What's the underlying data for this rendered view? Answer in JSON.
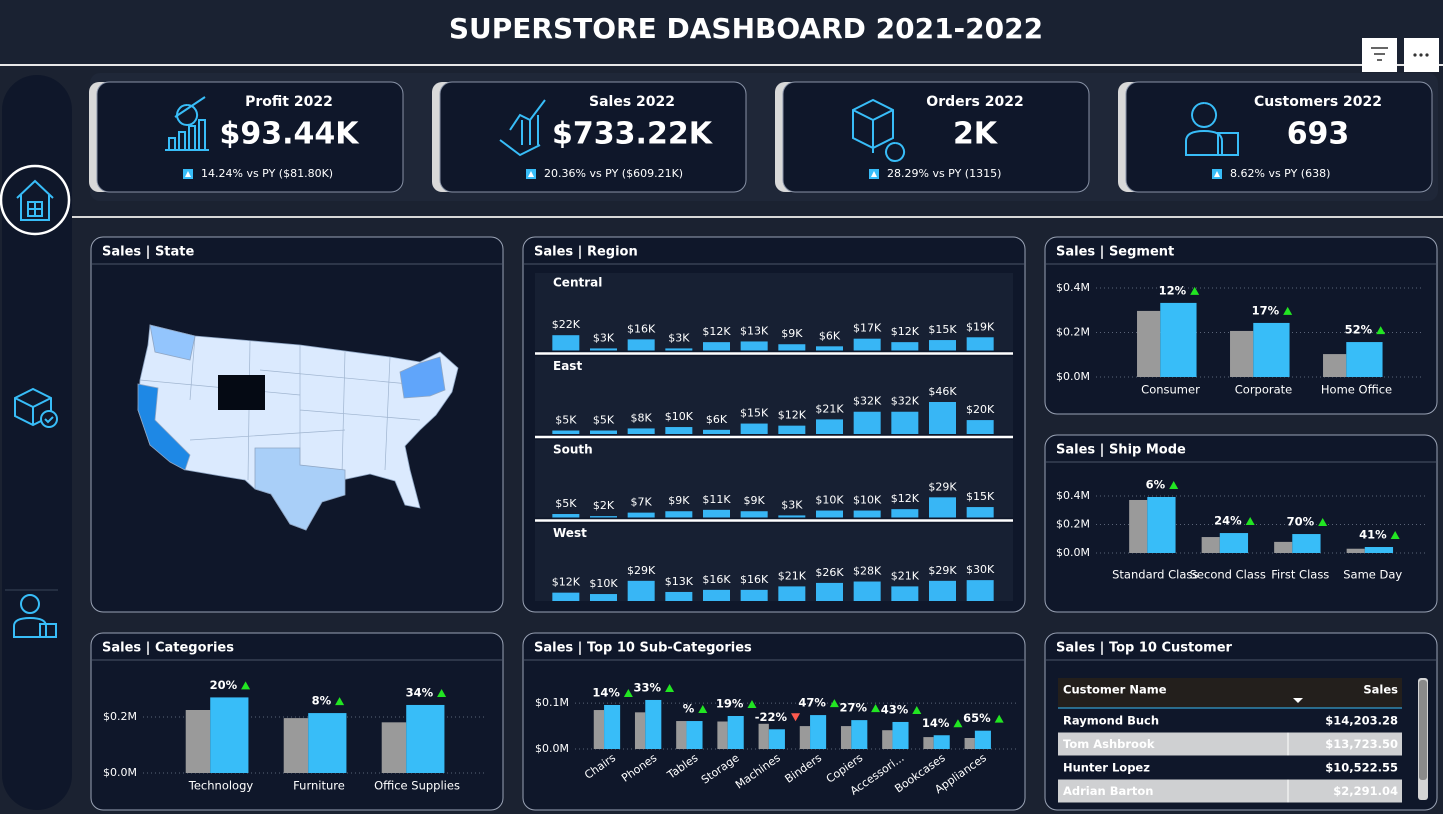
{
  "header": {
    "title": "SUPERSTORE DASHBOARD 2021-2022"
  },
  "kpis": [
    {
      "label": "Profit 2022",
      "value": "$93.44K",
      "comparison": "14.24% vs PY ($81.80K)"
    },
    {
      "label": "Sales 2022",
      "value": "$733.22K",
      "comparison": "20.36% vs PY ($609.21K)"
    },
    {
      "label": "Orders 2022",
      "value": "2K",
      "comparison": "28.29% vs PY (1315)"
    },
    {
      "label": "Customers 2022",
      "value": "693",
      "comparison": "8.62% vs PY (638)"
    }
  ],
  "chart_data": [
    {
      "type": "map",
      "title": "Sales | State"
    },
    {
      "type": "bar",
      "title": "Sales | Region",
      "layout": "small-multiples",
      "series": [
        {
          "name": "Central",
          "color": "#38b6f5",
          "values": [
            22,
            3,
            16,
            3,
            12,
            13,
            9,
            6,
            17,
            12,
            15,
            19
          ],
          "value_labels": [
            "$22K",
            "$3K",
            "$16K",
            "$3K",
            "$12K",
            "$13K",
            "$9K",
            "$6K",
            "$17K",
            "$12K",
            "$15K",
            "$19K"
          ]
        },
        {
          "name": "East",
          "color": "#38b6f5",
          "values": [
            5,
            5,
            8,
            10,
            6,
            15,
            12,
            21,
            32,
            32,
            46,
            20
          ],
          "value_labels": [
            "$5K",
            "$5K",
            "$8K",
            "$10K",
            "$6K",
            "$15K",
            "$12K",
            "$21K",
            "$32K",
            "$32K",
            "$46K",
            "$20K"
          ]
        },
        {
          "name": "South",
          "color": "#38b6f5",
          "values": [
            5,
            2,
            7,
            9,
            11,
            9,
            3,
            10,
            10,
            12,
            29,
            15
          ],
          "value_labels": [
            "$5K",
            "$2K",
            "$7K",
            "$9K",
            "$11K",
            "$9K",
            "$3K",
            "$10K",
            "$10K",
            "$12K",
            "$29K",
            "$15K"
          ]
        },
        {
          "name": "West",
          "color": "#38b6f5",
          "values": [
            12,
            10,
            29,
            13,
            16,
            16,
            21,
            26,
            28,
            21,
            29,
            30
          ],
          "value_labels": [
            "$12K",
            "$10K",
            "$29K",
            "$13K",
            "$16K",
            "$16K",
            "$21K",
            "$26K",
            "$28K",
            "$21K",
            "$29K",
            "$30K"
          ]
        }
      ]
    },
    {
      "type": "bar",
      "title": "Sales | Segment",
      "categories": [
        "Consumer",
        "Corporate",
        "Home Office"
      ],
      "series": [
        {
          "color": "#9a9a9a",
          "values": [
            0.297,
            0.207,
            0.103
          ]
        },
        {
          "color": "#38bdf8",
          "values": [
            0.333,
            0.243,
            0.157
          ]
        }
      ],
      "growth_labels": [
        "12%",
        "17%",
        "52%"
      ],
      "growth_direction": [
        "up",
        "up",
        "up"
      ],
      "ylim": [
        0,
        0.4
      ],
      "yticks": [
        {
          "value": 0,
          "label": "$0.0M"
        },
        {
          "value": 0.2,
          "label": "$0.2M"
        },
        {
          "value": 0.4,
          "label": "$0.4M"
        }
      ],
      "grid": true
    },
    {
      "type": "bar",
      "title": "Sales | Ship Mode",
      "categories": [
        "Standard Class",
        "Second Class",
        "First Class",
        "Same Day"
      ],
      "series": [
        {
          "color": "#9a9a9a",
          "values": [
            0.372,
            0.112,
            0.078,
            0.03
          ]
        },
        {
          "color": "#38bdf8",
          "values": [
            0.393,
            0.14,
            0.133,
            0.042
          ]
        }
      ],
      "growth_labels": [
        "6%",
        "24%",
        "70%",
        "41%"
      ],
      "growth_direction": [
        "up",
        "up",
        "up",
        "up"
      ],
      "ylim": [
        0,
        0.4
      ],
      "yticks": [
        {
          "value": 0,
          "label": "$0.0M"
        },
        {
          "value": 0.2,
          "label": "$0.2M"
        },
        {
          "value": 0.4,
          "label": "$0.4M"
        }
      ],
      "grid": true
    },
    {
      "type": "bar",
      "title": "Sales | Categories",
      "categories": [
        "Technology",
        "Furniture",
        "Office Supplies"
      ],
      "series": [
        {
          "color": "#9a9a9a",
          "values": [
            0.225,
            0.196,
            0.181
          ]
        },
        {
          "color": "#38bdf8",
          "values": [
            0.27,
            0.214,
            0.243
          ]
        }
      ],
      "growth_labels": [
        "20%",
        "8%",
        "34%"
      ],
      "growth_direction": [
        "up",
        "up",
        "up"
      ],
      "ylim": [
        0,
        0.3
      ],
      "yticks": [
        {
          "value": 0,
          "label": "$0.0M"
        },
        {
          "value": 0.2,
          "label": "$0.2M"
        }
      ],
      "grid": true
    },
    {
      "type": "bar",
      "title": "Sales | Top 10 Sub-Categories",
      "categories": [
        "Chairs",
        "Phones",
        "Tables",
        "Storage",
        "Machines",
        "Binders",
        "Copiers",
        "Accessori...",
        "Bookcases",
        "Appliances"
      ],
      "series": [
        {
          "color": "#9a9a9a",
          "values": [
            0.085,
            0.08,
            0.061,
            0.06,
            0.055,
            0.05,
            0.05,
            0.041,
            0.026,
            0.024
          ]
        },
        {
          "color": "#38bdf8",
          "values": [
            0.096,
            0.107,
            0.061,
            0.072,
            0.043,
            0.074,
            0.063,
            0.059,
            0.03,
            0.04
          ]
        }
      ],
      "growth_labels": [
        "14%",
        "33%",
        "%",
        "19%",
        "-22%",
        "47%",
        "27%",
        "43%",
        "14%",
        "65%"
      ],
      "growth_direction": [
        "up",
        "up",
        "up",
        "up",
        "down",
        "up",
        "up",
        "up",
        "up",
        "up"
      ],
      "ylim": [
        0,
        0.12
      ],
      "yticks": [
        {
          "value": 0,
          "label": "$0.0M"
        },
        {
          "value": 0.1,
          "label": "$0.1M"
        }
      ],
      "grid": true
    }
  ],
  "table": {
    "title": "Sales | Top 10 Customer",
    "columns": [
      "Customer Name",
      "Sales"
    ],
    "rows": [
      [
        "Raymond Buch",
        "$14,203.28"
      ],
      [
        "Tom Ashbrook",
        "$13,723.50"
      ],
      [
        "Hunter Lopez",
        "$10,522.55"
      ],
      [
        "Adrian Barton",
        "$2,291.04"
      ]
    ]
  }
}
